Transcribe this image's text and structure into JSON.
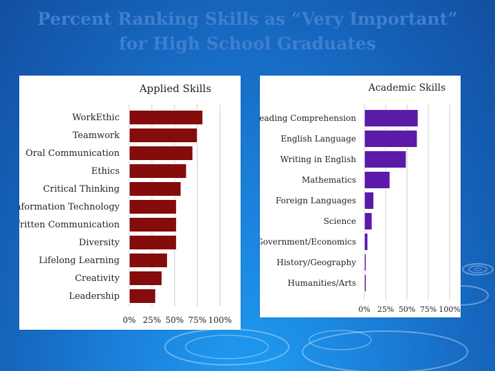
{
  "slide": {
    "title_line1": "Percent Ranking Skills as “Very Important”",
    "title_line2": "for High School Graduates"
  },
  "colors": {
    "applied_bar": "#840c0c",
    "academic_bar": "#5b1aa8",
    "grid": "#c8c8c8",
    "text": "#222222"
  },
  "chart_data": [
    {
      "type": "bar",
      "orientation": "horizontal",
      "title": "Applied Skills",
      "categories": [
        "WorkEthic",
        "Teamwork",
        "Oral Communication",
        "Ethics",
        "Critical Thinking",
        "Information Technology",
        "Written Communication",
        "Diversity",
        "Lifelong Learning",
        "Creativity",
        "Leadership"
      ],
      "values": [
        81,
        75,
        70,
        63,
        57,
        52,
        52,
        52,
        42,
        36,
        29
      ],
      "xlim": [
        0,
        100
      ],
      "xticks": [
        "0%",
        "25%",
        "50%",
        "75%",
        "100%"
      ],
      "grid": true
    },
    {
      "type": "bar",
      "orientation": "horizontal",
      "title": "Academic Skills",
      "categories": [
        "Reading Comprehension",
        "English Language",
        "Writing in English",
        "Mathematics",
        "Foreign Languages",
        "Science",
        "Government/Economics",
        "History/Geography",
        "Humanities/Arts"
      ],
      "values": [
        63,
        62,
        49,
        30,
        11,
        9,
        4,
        2,
        2
      ],
      "xlim": [
        0,
        100
      ],
      "xticks": [
        "0%",
        "25%",
        "50%",
        "75%",
        "100%"
      ],
      "grid": true
    }
  ]
}
